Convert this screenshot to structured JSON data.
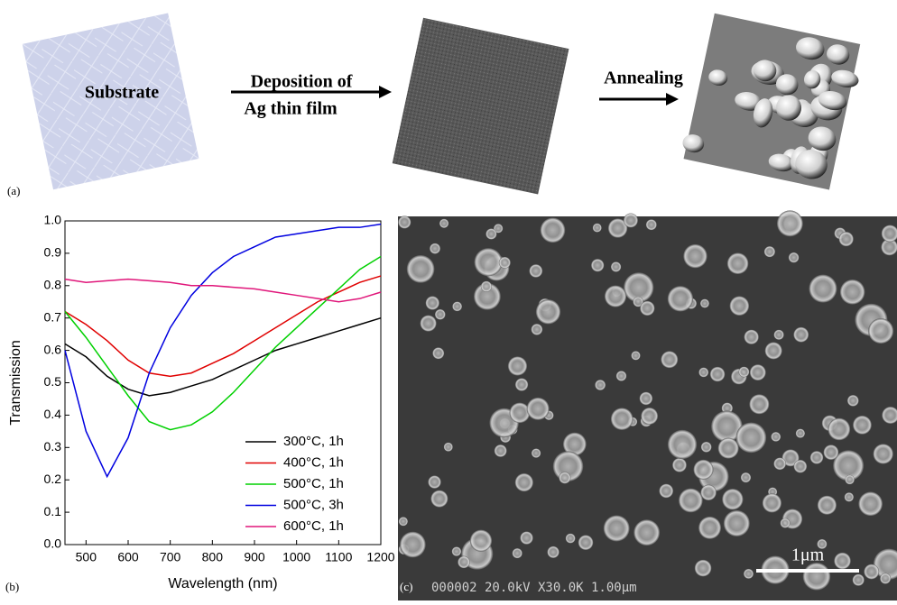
{
  "panel_a": {
    "label": "(a)",
    "substrate": "Substrate",
    "step1_line1": "Deposition of",
    "step1_line2": "Ag thin film",
    "step2": "Annealing"
  },
  "chart_data": {
    "type": "line",
    "panel_label": "(b)",
    "x_label": "Wavelength (nm)",
    "y_label": "Transmission",
    "x": [
      450,
      500,
      550,
      600,
      650,
      700,
      750,
      800,
      850,
      900,
      950,
      1000,
      1050,
      1100,
      1150,
      1200
    ],
    "series": [
      {
        "name": "300°C, 1h",
        "color": "#000000",
        "values": [
          0.62,
          0.58,
          0.52,
          0.48,
          0.46,
          0.47,
          0.49,
          0.51,
          0.54,
          0.57,
          0.6,
          0.62,
          0.64,
          0.66,
          0.68,
          0.7
        ]
      },
      {
        "name": "400°C, 1h",
        "color": "#e00000",
        "values": [
          0.72,
          0.68,
          0.63,
          0.57,
          0.53,
          0.52,
          0.53,
          0.56,
          0.59,
          0.63,
          0.67,
          0.71,
          0.75,
          0.78,
          0.81,
          0.83
        ]
      },
      {
        "name": "500°C, 1h",
        "color": "#00d000",
        "values": [
          0.72,
          0.64,
          0.55,
          0.46,
          0.38,
          0.355,
          0.37,
          0.41,
          0.47,
          0.54,
          0.61,
          0.67,
          0.73,
          0.79,
          0.85,
          0.89
        ]
      },
      {
        "name": "500°C, 3h",
        "color": "#0000e0",
        "values": [
          0.6,
          0.35,
          0.21,
          0.33,
          0.53,
          0.67,
          0.77,
          0.84,
          0.89,
          0.92,
          0.95,
          0.96,
          0.97,
          0.98,
          0.98,
          0.99
        ]
      },
      {
        "name": "600°C, 1h",
        "color": "#e0167a",
        "values": [
          0.82,
          0.81,
          0.815,
          0.82,
          0.815,
          0.81,
          0.8,
          0.8,
          0.795,
          0.79,
          0.78,
          0.77,
          0.76,
          0.75,
          0.76,
          0.78
        ]
      }
    ],
    "xlim": [
      450,
      1200
    ],
    "xticks": [
      500,
      600,
      700,
      800,
      900,
      1000,
      1100,
      1200
    ],
    "ylim": [
      0,
      1
    ],
    "yticks": [
      {
        "value": 0,
        "label": "0.0"
      },
      0.1,
      0.2,
      0.3,
      0.4,
      0.5,
      0.6,
      0.7,
      0.8,
      0.9,
      {
        "value": 1,
        "label": "1.0"
      }
    ],
    "legend": "lower right"
  },
  "panel_c": {
    "label": "(c)",
    "scale_bar": "1μm",
    "sem_info": "000002  20.0kV  X30.0K  1.00μm"
  }
}
